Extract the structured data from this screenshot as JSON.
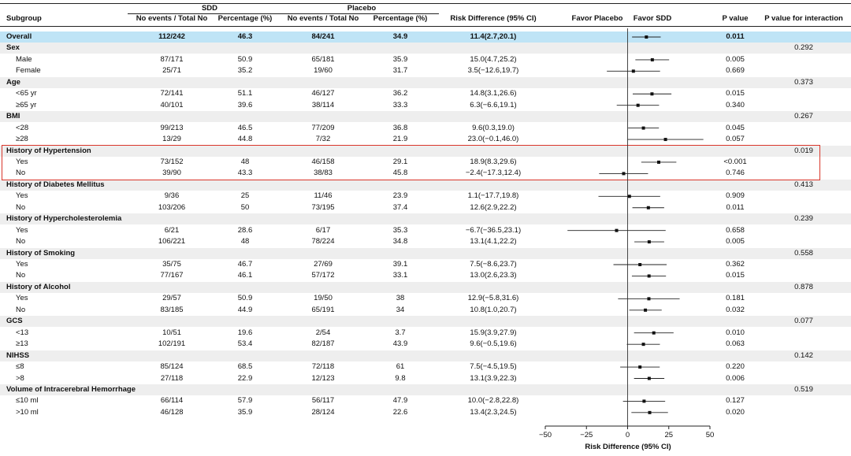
{
  "header": {
    "subgroup": "Subgroup",
    "sdd": "SDD",
    "placebo": "Placebo",
    "sdd_events": "No events / Total No",
    "sdd_pct": "Percentage (%)",
    "pl_events": "No events / Total No",
    "pl_pct": "Percentage (%)",
    "rd": "Risk Difference (95% CI)",
    "favor_placebo": "Favor Placebo",
    "favor_sdd": "Favor SDD",
    "pvalue": "P value",
    "pint": "P value for interaction"
  },
  "rows": [
    {
      "label": "Overall",
      "type": "overall",
      "sdd_events": "112/242",
      "sdd_pct": "46.3",
      "pl_events": "84/241",
      "pl_pct": "34.9",
      "rd": "11.4(2.7,20.1)",
      "p": "0.011"
    },
    {
      "label": "Sex",
      "type": "group",
      "pint": "0.292"
    },
    {
      "label": "Male",
      "type": "sub",
      "sdd_events": "87/171",
      "sdd_pct": "50.9",
      "pl_events": "65/181",
      "pl_pct": "35.9",
      "rd": "15.0(4.7,25.2)",
      "p": "0.005"
    },
    {
      "label": "Female",
      "type": "sub",
      "sdd_events": "25/71",
      "sdd_pct": "35.2",
      "pl_events": "19/60",
      "pl_pct": "31.7",
      "rd": "3.5(−12.6,19.7)",
      "p": "0.669"
    },
    {
      "label": "Age",
      "type": "group",
      "pint": "0.373"
    },
    {
      "label": "<65 yr",
      "type": "sub",
      "sdd_events": "72/141",
      "sdd_pct": "51.1",
      "pl_events": "46/127",
      "pl_pct": "36.2",
      "rd": "14.8(3.1,26.6)",
      "p": "0.015"
    },
    {
      "label": "≥65 yr",
      "type": "sub",
      "sdd_events": "40/101",
      "sdd_pct": "39.6",
      "pl_events": "38/114",
      "pl_pct": "33.3",
      "rd": "6.3(−6.6,19.1)",
      "p": "0.340"
    },
    {
      "label": "BMI",
      "type": "group",
      "pint": "0.267"
    },
    {
      "label": "<28",
      "type": "sub",
      "sdd_events": "99/213",
      "sdd_pct": "46.5",
      "pl_events": "77/209",
      "pl_pct": "36.8",
      "rd": "9.6(0.3,19.0)",
      "p": "0.045"
    },
    {
      "label": "≥28",
      "type": "sub",
      "sdd_events": "13/29",
      "sdd_pct": "44.8",
      "pl_events": "7/32",
      "pl_pct": "21.9",
      "rd": "23.0(−0.1,46.0)",
      "p": "0.057"
    },
    {
      "label": "History of Hypertension",
      "type": "group",
      "pint": "0.019"
    },
    {
      "label": "Yes",
      "type": "sub",
      "sdd_events": "73/152",
      "sdd_pct": "48",
      "pl_events": "46/158",
      "pl_pct": "29.1",
      "rd": "18.9(8.3,29.6)",
      "p": "<0.001"
    },
    {
      "label": "No",
      "type": "sub",
      "sdd_events": "39/90",
      "sdd_pct": "43.3",
      "pl_events": "38/83",
      "pl_pct": "45.8",
      "rd": "−2.4(−17.3,12.4)",
      "p": "0.746"
    },
    {
      "label": "History of Diabetes Mellitus",
      "type": "group",
      "pint": "0.413"
    },
    {
      "label": "Yes",
      "type": "sub",
      "sdd_events": "9/36",
      "sdd_pct": "25",
      "pl_events": "11/46",
      "pl_pct": "23.9",
      "rd": "1.1(−17.7,19.8)",
      "p": "0.909"
    },
    {
      "label": "No",
      "type": "sub",
      "sdd_events": "103/206",
      "sdd_pct": "50",
      "pl_events": "73/195",
      "pl_pct": "37.4",
      "rd": "12.6(2.9,22.2)",
      "p": "0.011"
    },
    {
      "label": "History of Hypercholesterolemia",
      "type": "group",
      "pint": "0.239"
    },
    {
      "label": "Yes",
      "type": "sub",
      "sdd_events": "6/21",
      "sdd_pct": "28.6",
      "pl_events": "6/17",
      "pl_pct": "35.3",
      "rd": "−6.7(−36.5,23.1)",
      "p": "0.658"
    },
    {
      "label": "No",
      "type": "sub",
      "sdd_events": "106/221",
      "sdd_pct": "48",
      "pl_events": "78/224",
      "pl_pct": "34.8",
      "rd": "13.1(4.1,22.2)",
      "p": "0.005"
    },
    {
      "label": "History of Smoking",
      "type": "group",
      "pint": "0.558"
    },
    {
      "label": "Yes",
      "type": "sub",
      "sdd_events": "35/75",
      "sdd_pct": "46.7",
      "pl_events": "27/69",
      "pl_pct": "39.1",
      "rd": "7.5(−8.6,23.7)",
      "p": "0.362"
    },
    {
      "label": "No",
      "type": "sub",
      "sdd_events": "77/167",
      "sdd_pct": "46.1",
      "pl_events": "57/172",
      "pl_pct": "33.1",
      "rd": "13.0(2.6,23.3)",
      "p": "0.015"
    },
    {
      "label": "History of Alcohol",
      "type": "group",
      "pint": "0.878"
    },
    {
      "label": "Yes",
      "type": "sub",
      "sdd_events": "29/57",
      "sdd_pct": "50.9",
      "pl_events": "19/50",
      "pl_pct": "38",
      "rd": "12.9(−5.8,31.6)",
      "p": "0.181"
    },
    {
      "label": "No",
      "type": "sub",
      "sdd_events": "83/185",
      "sdd_pct": "44.9",
      "pl_events": "65/191",
      "pl_pct": "34",
      "rd": "10.8(1.0,20.7)",
      "p": "0.032"
    },
    {
      "label": "GCS",
      "type": "group",
      "pint": "0.077"
    },
    {
      "label": "<13",
      "type": "sub",
      "sdd_events": "10/51",
      "sdd_pct": "19.6",
      "pl_events": "2/54",
      "pl_pct": "3.7",
      "rd": "15.9(3.9,27.9)",
      "p": "0.010"
    },
    {
      "label": "≥13",
      "type": "sub",
      "sdd_events": "102/191",
      "sdd_pct": "53.4",
      "pl_events": "82/187",
      "pl_pct": "43.9",
      "rd": "9.6(−0.5,19.6)",
      "p": "0.063"
    },
    {
      "label": "NIHSS",
      "type": "group",
      "pint": "0.142"
    },
    {
      "label": "≤8",
      "type": "sub",
      "sdd_events": "85/124",
      "sdd_pct": "68.5",
      "pl_events": "72/118",
      "pl_pct": "61",
      "rd": "7.5(−4.5,19.5)",
      "p": "0.220"
    },
    {
      "label": ">8",
      "type": "sub",
      "sdd_events": "27/118",
      "sdd_pct": "22.9",
      "pl_events": "12/123",
      "pl_pct": "9.8",
      "rd": "13.1(3.9,22.3)",
      "p": "0.006"
    },
    {
      "label": "Volume of Intracerebral Hemorrhage",
      "type": "group",
      "pint": "0.519"
    },
    {
      "label": "≤10 ml",
      "type": "sub",
      "sdd_events": "66/114",
      "sdd_pct": "57.9",
      "pl_events": "56/117",
      "pl_pct": "47.9",
      "rd": "10.0(−2.8,22.8)",
      "p": "0.127"
    },
    {
      "label": ">10 ml",
      "type": "sub",
      "sdd_events": "46/128",
      "sdd_pct": "35.9",
      "pl_events": "28/124",
      "pl_pct": "22.6",
      "rd": "13.4(2.3,24.5)",
      "p": "0.020"
    }
  ],
  "chart_data": {
    "type": "scatter",
    "xlabel": "Risk Difference (95% CI)",
    "xlim": [
      -50,
      50
    ],
    "xticks": [
      -50,
      -25,
      0,
      25,
      50
    ],
    "reference_line": 0,
    "highlight_group": "History of Hypertension",
    "highlight_color": "#d9352a",
    "overall_band_color": "#bfe4f6",
    "group_band_color": "#eeeeee",
    "points": [
      {
        "row": 0,
        "estimate": 11.4,
        "lower": 2.7,
        "upper": 20.1
      },
      {
        "row": 2,
        "estimate": 15.0,
        "lower": 4.7,
        "upper": 25.2
      },
      {
        "row": 3,
        "estimate": 3.5,
        "lower": -12.6,
        "upper": 19.7
      },
      {
        "row": 5,
        "estimate": 14.8,
        "lower": 3.1,
        "upper": 26.6
      },
      {
        "row": 6,
        "estimate": 6.3,
        "lower": -6.6,
        "upper": 19.1
      },
      {
        "row": 8,
        "estimate": 9.6,
        "lower": 0.3,
        "upper": 19.0
      },
      {
        "row": 9,
        "estimate": 23.0,
        "lower": -0.1,
        "upper": 46.0
      },
      {
        "row": 11,
        "estimate": 18.9,
        "lower": 8.3,
        "upper": 29.6
      },
      {
        "row": 12,
        "estimate": -2.4,
        "lower": -17.3,
        "upper": 12.4
      },
      {
        "row": 14,
        "estimate": 1.1,
        "lower": -17.7,
        "upper": 19.8
      },
      {
        "row": 15,
        "estimate": 12.6,
        "lower": 2.9,
        "upper": 22.2
      },
      {
        "row": 17,
        "estimate": -6.7,
        "lower": -36.5,
        "upper": 23.1
      },
      {
        "row": 18,
        "estimate": 13.1,
        "lower": 4.1,
        "upper": 22.2
      },
      {
        "row": 20,
        "estimate": 7.5,
        "lower": -8.6,
        "upper": 23.7
      },
      {
        "row": 21,
        "estimate": 13.0,
        "lower": 2.6,
        "upper": 23.3
      },
      {
        "row": 23,
        "estimate": 12.9,
        "lower": -5.8,
        "upper": 31.6
      },
      {
        "row": 24,
        "estimate": 10.8,
        "lower": 1.0,
        "upper": 20.7
      },
      {
        "row": 26,
        "estimate": 15.9,
        "lower": 3.9,
        "upper": 27.9
      },
      {
        "row": 27,
        "estimate": 9.6,
        "lower": -0.5,
        "upper": 19.6
      },
      {
        "row": 29,
        "estimate": 7.5,
        "lower": -4.5,
        "upper": 19.5
      },
      {
        "row": 30,
        "estimate": 13.1,
        "lower": 3.9,
        "upper": 22.3
      },
      {
        "row": 32,
        "estimate": 10.0,
        "lower": -2.8,
        "upper": 22.8
      },
      {
        "row": 33,
        "estimate": 13.4,
        "lower": 2.3,
        "upper": 24.5
      }
    ]
  }
}
